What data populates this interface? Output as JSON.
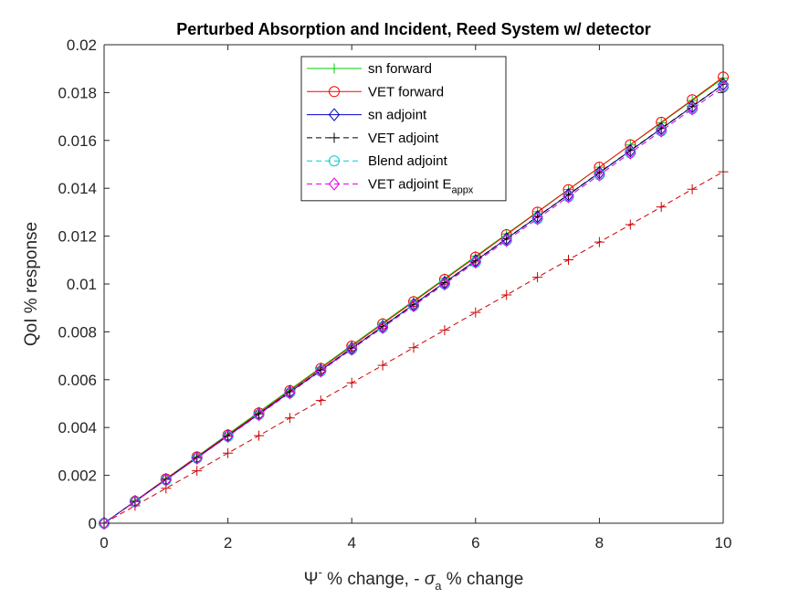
{
  "chart_data": {
    "type": "line",
    "title": "Perturbed Absorption and Incident, Reed System w/ detector",
    "xlabel_parts": {
      "psi": "Ψ",
      "minus": "-",
      "mid": " % change, - ",
      "sigma": "σ",
      "sub": "a",
      "tail": " % change"
    },
    "ylabel": "QoI % response",
    "xlim": [
      0,
      10
    ],
    "ylim": [
      0,
      0.02
    ],
    "xticks": [
      0,
      2,
      4,
      6,
      8,
      10
    ],
    "xtick_labels": [
      "0",
      "2",
      "4",
      "6",
      "8",
      "10"
    ],
    "yticks": [
      0,
      0.002,
      0.004,
      0.006,
      0.008,
      0.01,
      0.012,
      0.014,
      0.016,
      0.018,
      0.02
    ],
    "ytick_labels": [
      "0",
      "0.002",
      "0.004",
      "0.006",
      "0.008",
      "0.01",
      "0.012",
      "0.014",
      "0.016",
      "0.018",
      "0.02"
    ],
    "grid": false,
    "legend_position": "top-center",
    "x": [
      0,
      0.5,
      1,
      1.5,
      2,
      2.5,
      3,
      3.5,
      4,
      4.5,
      5,
      5.5,
      6,
      6.5,
      7,
      7.5,
      8,
      8.5,
      9,
      9.5,
      10
    ],
    "series": [
      {
        "name": "sn forward",
        "color": "#00cc00",
        "dash": "solid",
        "marker": "plus",
        "values": [
          0,
          0.00093,
          0.00186,
          0.00279,
          0.00372,
          0.00465,
          0.00558,
          0.00651,
          0.00744,
          0.00837,
          0.0093,
          0.01023,
          0.01116,
          0.01209,
          0.01302,
          0.01395,
          0.01488,
          0.01581,
          0.01674,
          0.01767,
          0.0186
        ]
      },
      {
        "name": "VET forward",
        "color": "#ff0000",
        "dash": "solid",
        "marker": "circle",
        "values": [
          0,
          0.00092,
          0.00185,
          0.00277,
          0.00369,
          0.00461,
          0.00554,
          0.00647,
          0.0074,
          0.00833,
          0.00926,
          0.01019,
          0.01112,
          0.01206,
          0.013,
          0.01394,
          0.01488,
          0.01582,
          0.01676,
          0.0177,
          0.01865
        ]
      },
      {
        "name": "sn adjoint",
        "color": "#0000cc",
        "dash": "solid",
        "marker": "diamond",
        "values": [
          0,
          0.00091,
          0.00182,
          0.00273,
          0.00365,
          0.00456,
          0.00548,
          0.00639,
          0.00731,
          0.00822,
          0.00914,
          0.01006,
          0.01097,
          0.01189,
          0.01281,
          0.01373,
          0.01465,
          0.01557,
          0.01649,
          0.01741,
          0.01834
        ]
      },
      {
        "name": "VET adjoint",
        "color": "#000000",
        "dash": "dashed",
        "marker": "plus",
        "values": [
          0,
          0.00091,
          0.00183,
          0.00274,
          0.00365,
          0.00457,
          0.00549,
          0.0064,
          0.00732,
          0.00823,
          0.00915,
          0.01006,
          0.01098,
          0.0119,
          0.01282,
          0.01374,
          0.01466,
          0.01558,
          0.0165,
          0.01742,
          0.01835
        ]
      },
      {
        "name": "Blend adjoint",
        "color": "#00cccc",
        "dash": "dashed",
        "marker": "circle",
        "values": [
          0,
          0.0009,
          0.00181,
          0.00272,
          0.00363,
          0.00454,
          0.00545,
          0.00636,
          0.00727,
          0.00818,
          0.00909,
          0.01,
          0.01091,
          0.01182,
          0.01273,
          0.01365,
          0.01456,
          0.01548,
          0.0164,
          0.01732,
          0.01823
        ]
      },
      {
        "name_parts": {
          "main": "VET adjoint E",
          "sub": "appx"
        },
        "color": "#e600e6",
        "dash": "dashed",
        "marker": "diamond",
        "values": [
          0,
          0.0009,
          0.00181,
          0.00272,
          0.00363,
          0.00454,
          0.00545,
          0.00636,
          0.00727,
          0.00818,
          0.00909,
          0.01,
          0.01091,
          0.01182,
          0.01273,
          0.01365,
          0.01456,
          0.01548,
          0.0164,
          0.01732,
          0.01823
        ]
      },
      {
        "name": "",
        "color": "#cc0000",
        "dash": "dashed",
        "marker": "plus",
        "in_legend": false,
        "values": [
          0,
          0.00073,
          0.00146,
          0.00219,
          0.00293,
          0.00366,
          0.0044,
          0.00513,
          0.00587,
          0.0066,
          0.00734,
          0.00807,
          0.00881,
          0.00954,
          0.01028,
          0.01101,
          0.01175,
          0.01248,
          0.01322,
          0.01396,
          0.01469
        ]
      }
    ]
  }
}
